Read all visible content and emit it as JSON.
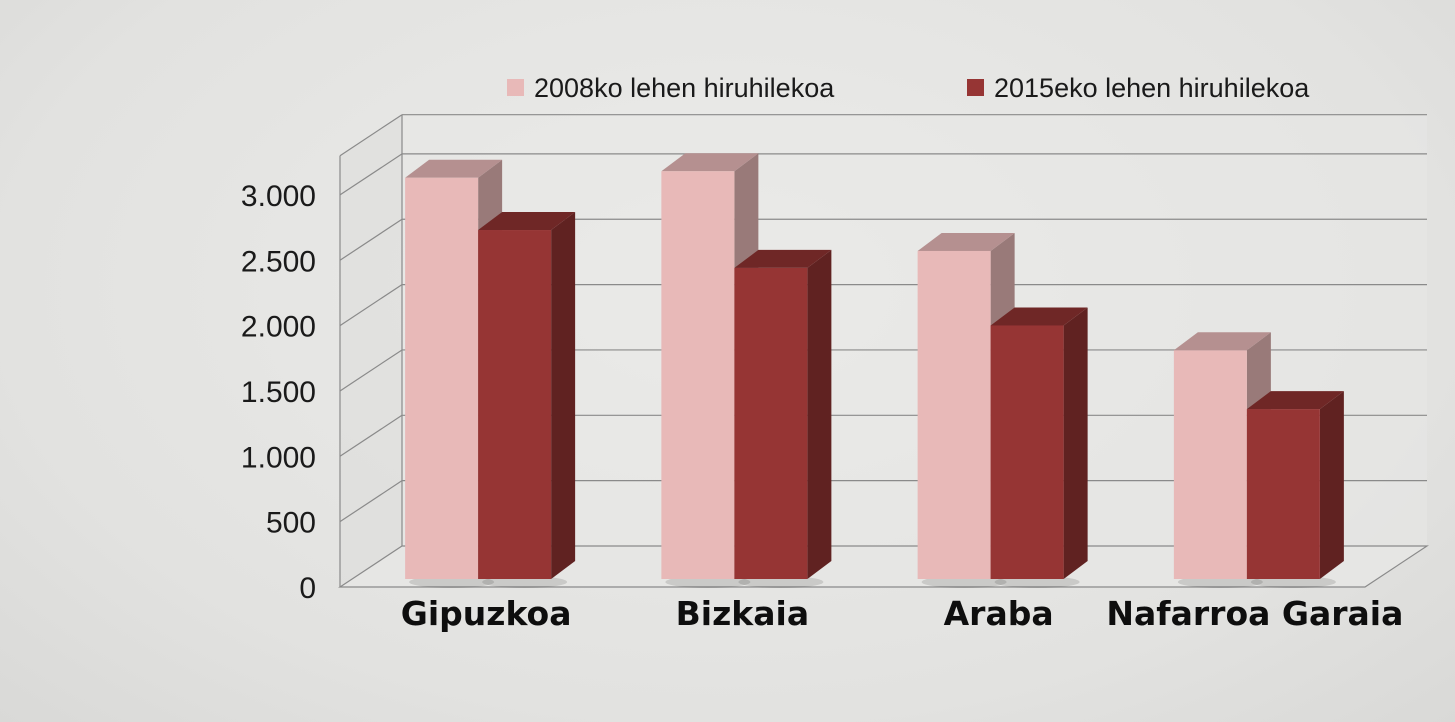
{
  "chart_data": {
    "type": "bar",
    "title": "",
    "xlabel": "",
    "ylabel": "",
    "categories": [
      "Gipuzkoa",
      "Bizkaia",
      "Araba",
      "Nafarroa Garaia"
    ],
    "series": [
      {
        "name": "2008ko lehen hiruhilekoa",
        "values": [
          3070,
          3120,
          2510,
          1750
        ],
        "color": "#e8b9b8"
      },
      {
        "name": "2015eko lehen hiruhilekoa",
        "values": [
          2670,
          2380,
          1940,
          1300
        ],
        "color": "#963534"
      }
    ],
    "ylim": [
      0,
      3300
    ],
    "yticks": [
      0,
      500,
      1000,
      1500,
      2000,
      2500,
      3000
    ],
    "ytick_labels": [
      "0",
      "500",
      "1.000",
      "1.500",
      "2.000",
      "2.500",
      "3.000"
    ],
    "grid": true,
    "style": "3d-clustered-column",
    "legend_position": "top"
  }
}
